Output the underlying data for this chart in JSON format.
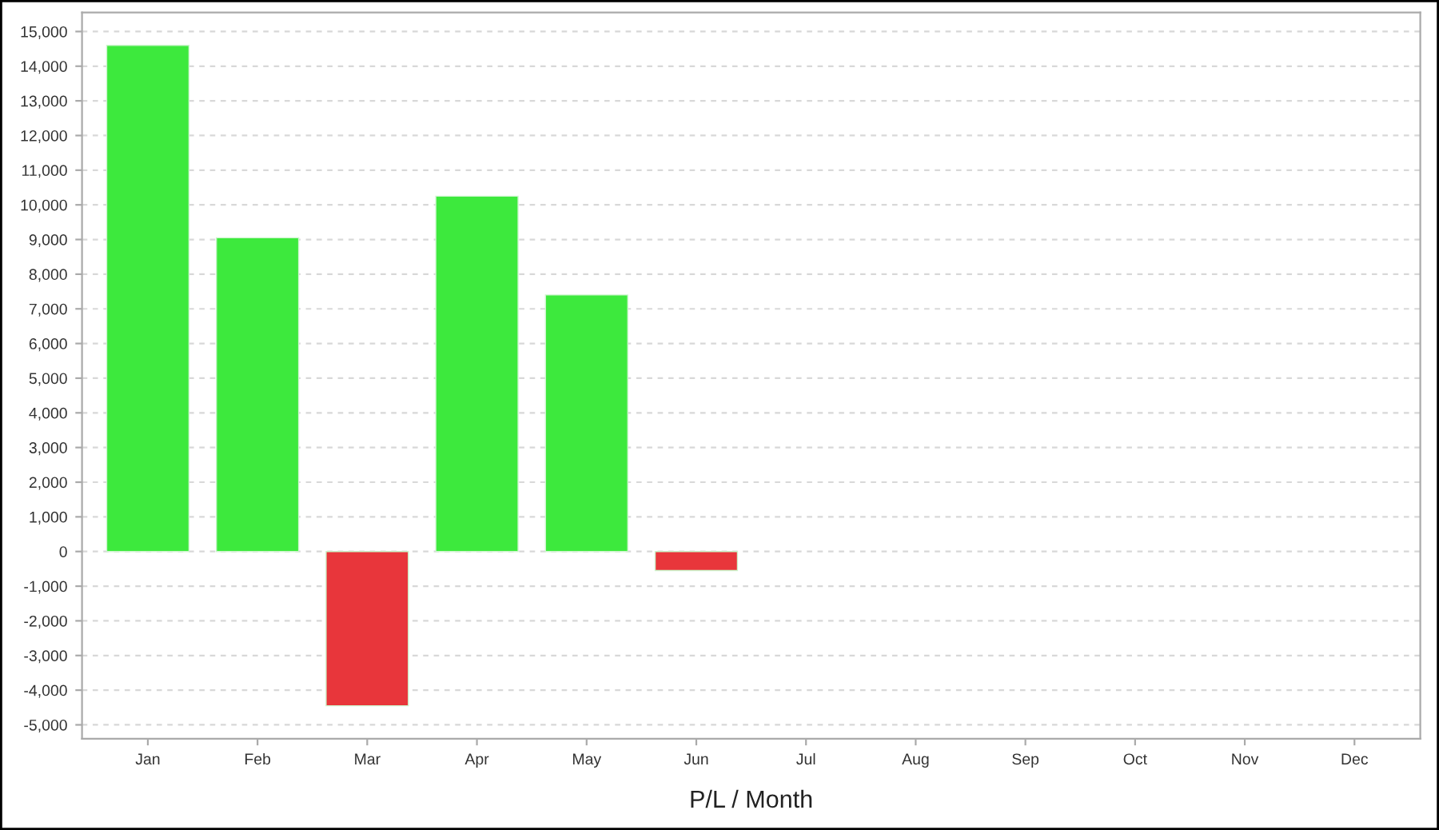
{
  "chart_data": {
    "type": "bar",
    "xlabel": "P/L / Month",
    "categories": [
      "Jan",
      "Feb",
      "Mar",
      "Apr",
      "May",
      "Jun",
      "Jul",
      "Aug",
      "Sep",
      "Oct",
      "Nov",
      "Dec"
    ],
    "values": [
      14600,
      9050,
      -4450,
      10250,
      7400,
      -550,
      null,
      null,
      null,
      null,
      null,
      null
    ],
    "colors": [
      "#3de93d",
      "#3de93d",
      "#e8363b",
      "#3de93d",
      "#3de93d",
      "#e8363b",
      "#3de93d",
      "#3de93d",
      "#3de93d",
      "#3de93d",
      "#3de93d",
      "#3de93d"
    ],
    "ylim": [
      -5400,
      15550
    ],
    "yticks": [
      {
        "value": -5000,
        "label": "-5,000"
      },
      {
        "value": -4000,
        "label": "-4,000"
      },
      {
        "value": -3000,
        "label": "-3,000"
      },
      {
        "value": -2000,
        "label": "-2,000"
      },
      {
        "value": -1000,
        "label": "-1,000"
      },
      0,
      {
        "value": 1000,
        "label": "1,000"
      },
      {
        "value": 2000,
        "label": "2,000"
      },
      {
        "value": 3000,
        "label": "3,000"
      },
      {
        "value": 4000,
        "label": "4,000"
      },
      {
        "value": 5000,
        "label": "5,000"
      },
      {
        "value": 6000,
        "label": "6,000"
      },
      {
        "value": 7000,
        "label": "7,000"
      },
      {
        "value": 8000,
        "label": "8,000"
      },
      {
        "value": 9000,
        "label": "9,000"
      },
      {
        "value": 10000,
        "label": "10,000"
      },
      {
        "value": 11000,
        "label": "11,000"
      },
      {
        "value": 12000,
        "label": "12,000"
      },
      {
        "value": 13000,
        "label": "13,000"
      },
      {
        "value": 14000,
        "label": "14,000"
      },
      {
        "value": 15000,
        "label": "15,000"
      }
    ],
    "grid": "y"
  }
}
